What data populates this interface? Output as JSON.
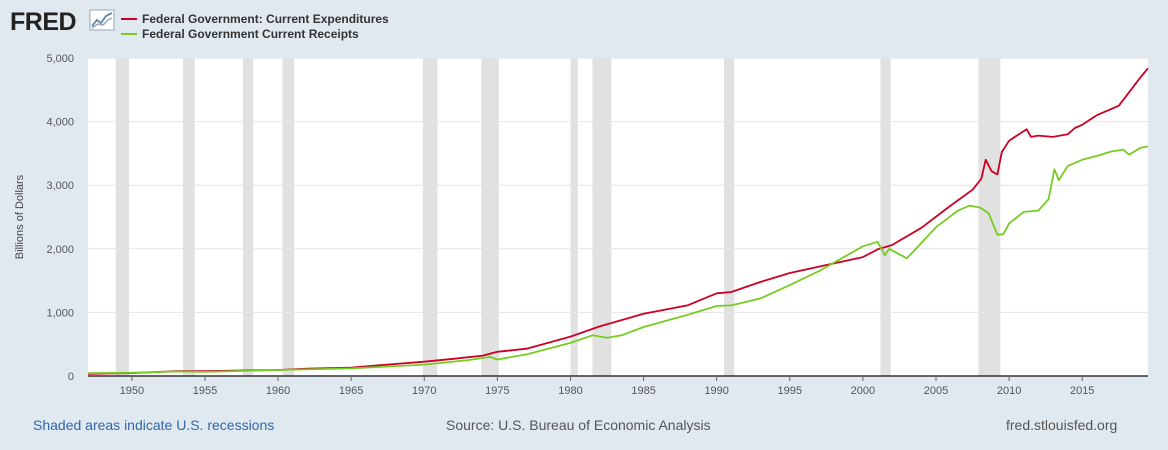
{
  "brand": {
    "logo_text": "FRED",
    "logo_icon": "chart-line-icon"
  },
  "footer": {
    "recession_note": "Shaded areas indicate U.S. recessions",
    "source": "Source: U.S. Bureau of Economic Analysis",
    "website": "fred.stlouisfed.org"
  },
  "colors": {
    "background": "#e1e9f0",
    "plot": "#ffffff",
    "recession": "#e1e1e1",
    "expenditures": "#cc0022",
    "receipts": "#77cc22"
  },
  "chart_data": {
    "type": "line",
    "title": "",
    "xlabel": "",
    "ylabel": "Billions of Dollars",
    "xlim": [
      1947,
      2019.5
    ],
    "ylim": [
      0,
      5000
    ],
    "yticks": [
      0,
      1000,
      2000,
      3000,
      4000,
      5000
    ],
    "ytick_labels": [
      "0",
      "1,000",
      "2,000",
      "3,000",
      "4,000",
      "5,000"
    ],
    "xticks": [
      1950,
      1955,
      1960,
      1965,
      1970,
      1975,
      1980,
      1985,
      1990,
      1995,
      2000,
      2005,
      2010,
      2015
    ],
    "grid": true,
    "legend_position": "top-left",
    "recessions": [
      [
        1948.9,
        1949.8
      ],
      [
        1953.5,
        1954.3
      ],
      [
        1957.6,
        1958.3
      ],
      [
        1960.3,
        1961.1
      ],
      [
        1969.9,
        1970.9
      ],
      [
        1973.9,
        1975.1
      ],
      [
        1980.0,
        1980.5
      ],
      [
        1981.5,
        1982.8
      ],
      [
        1990.5,
        1991.2
      ],
      [
        2001.2,
        2001.9
      ],
      [
        2007.9,
        2009.4
      ]
    ],
    "series": [
      {
        "name": "Federal Government: Current Expenditures",
        "color": "#cc0022",
        "x": [
          1947,
          1950,
          1953,
          1955,
          1957,
          1960,
          1962,
          1965,
          1967,
          1970,
          1972,
          1974,
          1975,
          1977,
          1980,
          1982,
          1985,
          1988,
          1990,
          1991,
          1993,
          1995,
          1997,
          2000,
          2001,
          2002,
          2004,
          2006,
          2007.5,
          2008.1,
          2008.4,
          2008.8,
          2009.2,
          2009.5,
          2010,
          2011.2,
          2011.5,
          2012,
          2013,
          2014,
          2014.5,
          2015,
          2016,
          2017,
          2017.5,
          2018,
          2019,
          2019.5
        ],
        "y": [
          35,
          45,
          75,
          75,
          85,
          95,
          115,
          130,
          170,
          225,
          270,
          320,
          380,
          430,
          620,
          780,
          980,
          1110,
          1300,
          1320,
          1480,
          1620,
          1720,
          1870,
          1990,
          2060,
          2330,
          2680,
          2930,
          3100,
          3400,
          3220,
          3170,
          3520,
          3700,
          3880,
          3760,
          3780,
          3760,
          3800,
          3900,
          3950,
          4100,
          4200,
          4250,
          4400,
          4700,
          4840
        ]
      },
      {
        "name": "Federal Government Current Receipts",
        "color": "#77cc22",
        "x": [
          1947,
          1950,
          1953,
          1955,
          1960,
          1965,
          1970,
          1973,
          1974.5,
          1975,
          1977,
          1980,
          1981.5,
          1982.5,
          1983.5,
          1985,
          1988,
          1990,
          1991,
          1993,
          1995,
          1997,
          2000,
          2001,
          2001.5,
          2001.8,
          2003,
          2003.5,
          2005,
          2006.5,
          2007.3,
          2008,
          2008.6,
          2009.2,
          2009.6,
          2010,
          2011,
          2012,
          2012.7,
          2013.1,
          2013.4,
          2014,
          2015,
          2016,
          2017,
          2017.8,
          2018.2,
          2019,
          2019.5
        ],
        "y": [
          45,
          50,
          70,
          65,
          95,
          120,
          180,
          250,
          300,
          260,
          340,
          520,
          640,
          600,
          640,
          770,
          960,
          1100,
          1110,
          1220,
          1430,
          1650,
          2040,
          2110,
          1900,
          2000,
          1850,
          1970,
          2340,
          2600,
          2680,
          2650,
          2560,
          2220,
          2230,
          2400,
          2580,
          2600,
          2780,
          3250,
          3080,
          3300,
          3400,
          3460,
          3530,
          3560,
          3480,
          3590,
          3610
        ]
      }
    ]
  }
}
